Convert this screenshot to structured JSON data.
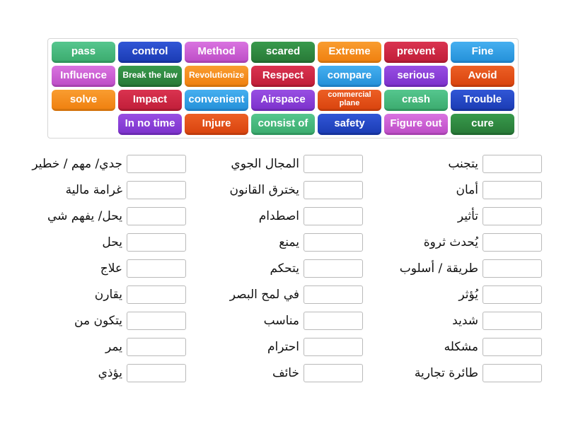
{
  "palette": {
    "emerald": "#45b97c",
    "royal_blue": "#2244c4",
    "orchid": "#cb5fd2",
    "forest_green": "#2e8a40",
    "orange": "#f68d1e",
    "crimson": "#ce2440",
    "azure": "#2e9ee6",
    "violet": "#8a3dd8",
    "vermilion": "#e44d15"
  },
  "tile_panel": {
    "rows": [
      {
        "tiles": [
          {
            "label": "pass",
            "color": "emerald"
          },
          {
            "label": "control",
            "color": "royal_blue"
          },
          {
            "label": "Method",
            "color": "orchid"
          },
          {
            "label": "scared",
            "color": "forest_green"
          },
          {
            "label": "Extreme",
            "color": "orange"
          },
          {
            "label": "prevent",
            "color": "crimson"
          },
          {
            "label": "Fine",
            "color": "azure"
          }
        ]
      },
      {
        "tiles": [
          {
            "label": "Influence",
            "color": "orchid"
          },
          {
            "label": "Break the law",
            "color": "forest_green",
            "size": "s"
          },
          {
            "label": "Revolutionize",
            "color": "orange",
            "size": "s"
          },
          {
            "label": "Respect",
            "color": "crimson"
          },
          {
            "label": "compare",
            "color": "azure"
          },
          {
            "label": "serious",
            "color": "violet"
          },
          {
            "label": "Avoid",
            "color": "vermilion"
          }
        ]
      },
      {
        "tiles": [
          {
            "label": "solve",
            "color": "orange"
          },
          {
            "label": "Impact",
            "color": "crimson"
          },
          {
            "label": "convenient",
            "color": "azure"
          },
          {
            "label": "Airspace",
            "color": "violet"
          },
          {
            "label": "commercial plane",
            "color": "vermilion",
            "size": "xs"
          },
          {
            "label": "crash",
            "color": "emerald"
          },
          {
            "label": "Trouble",
            "color": "royal_blue"
          }
        ]
      },
      {
        "tiles": [
          {
            "label": "In no time",
            "color": "violet"
          },
          {
            "label": "Injure",
            "color": "vermilion"
          },
          {
            "label": "consist of",
            "color": "emerald"
          },
          {
            "label": "safety",
            "color": "royal_blue"
          },
          {
            "label": "Figure out",
            "color": "orchid"
          },
          {
            "label": "cure",
            "color": "forest_green"
          }
        ]
      }
    ]
  },
  "match_columns": [
    {
      "items": [
        "جدي/ مهم / خطير",
        "غرامة مالية",
        "يحل/ يفهم شي",
        "يحل",
        "علاج",
        "يقارن",
        "يتكون من",
        "يمر",
        "يؤذي"
      ]
    },
    {
      "items": [
        "المجال الجوي",
        "يخترق القانون",
        "اصطدام",
        "يمنع",
        "يتحكم",
        "في لمح البصر",
        "مناسب",
        "احترام",
        "خائف"
      ]
    },
    {
      "items": [
        "يتجنب",
        "أمان",
        "تأثير",
        "يُحدث ثروة",
        "طريقة / أسلوب",
        "يُؤثر",
        "شديد",
        "مشكله",
        "طائرة تجارية"
      ]
    }
  ]
}
